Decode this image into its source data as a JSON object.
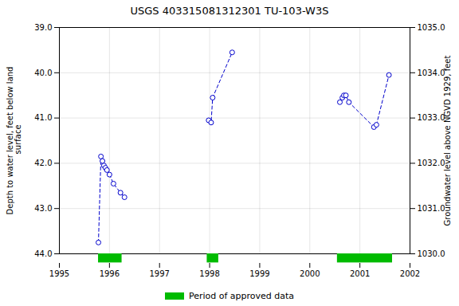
{
  "chart_data": {
    "type": "line",
    "title": "USGS 403315081312301 TU-103-W3S",
    "ylabel": "Depth to water level, feet below land\n surface",
    "y2label": "Groundwater level above NGVD 1929, feet",
    "xlim": [
      1995,
      2002
    ],
    "xticks": [
      1995,
      1996,
      1997,
      1998,
      1999,
      2000,
      2001,
      2002
    ],
    "ylim": [
      44.0,
      39.0
    ],
    "yticks": [
      {
        "value": 39.0,
        "label": "39.0"
      },
      {
        "value": 40.0,
        "label": "40.0"
      },
      {
        "value": 41.0,
        "label": "41.0"
      },
      {
        "value": 42.0,
        "label": "42.0"
      },
      {
        "value": 43.0,
        "label": "43.0"
      },
      {
        "value": 44.0,
        "label": "44.0"
      }
    ],
    "y2lim": [
      1030.0,
      1035.0
    ],
    "y2ticks": [
      {
        "value": 1030.0,
        "label": "1030.0"
      },
      {
        "value": 1031.0,
        "label": "1031.0"
      },
      {
        "value": 1032.0,
        "label": "1032.0"
      },
      {
        "value": 1033.0,
        "label": "1033.0"
      },
      {
        "value": 1034.0,
        "label": "1034.0"
      },
      {
        "value": 1035.0,
        "label": "1035.0"
      }
    ],
    "grid": true,
    "legend": "bottom",
    "series": [
      {
        "color": "#0000cc",
        "marker": "circle",
        "line_style": "dashed",
        "x": [
          1995.78,
          1995.83,
          1995.86,
          1995.89,
          1995.92,
          1995.95,
          1996.0,
          1996.08,
          1996.22,
          1996.3
        ],
        "values": [
          43.75,
          41.85,
          41.95,
          42.05,
          42.1,
          42.15,
          42.25,
          42.45,
          42.65,
          42.75
        ]
      },
      {
        "color": "#0000cc",
        "marker": "circle",
        "line_style": "dashed",
        "x": [
          1997.98,
          1998.03,
          1998.06,
          1998.45
        ],
        "values": [
          41.05,
          41.1,
          40.55,
          39.55
        ]
      },
      {
        "color": "#0000cc",
        "marker": "circle",
        "line_style": "dashed",
        "x": [
          2000.6,
          2000.65,
          2000.68,
          2000.72,
          2000.78,
          2001.28,
          2001.33,
          2001.58
        ],
        "values": [
          40.65,
          40.55,
          40.5,
          40.5,
          40.65,
          41.2,
          41.15,
          40.05
        ]
      }
    ],
    "approved_periods": {
      "name": "Period of approved data",
      "color": "#00bb00",
      "ranges": [
        [
          1995.78,
          1996.25
        ],
        [
          1997.95,
          1998.18
        ],
        [
          2000.55,
          2001.65
        ]
      ]
    }
  }
}
